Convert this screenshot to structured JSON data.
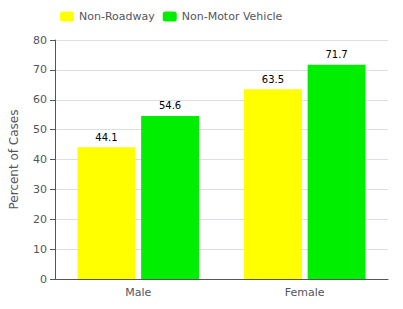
{
  "chart_data": {
    "type": "bar",
    "categories": [
      "Male",
      "Female"
    ],
    "series": [
      {
        "name": "Non-Roadway",
        "color": "#ffff00",
        "values": [
          44.1,
          63.5
        ]
      },
      {
        "name": "Non-Motor Vehicle",
        "color": "#00ee00",
        "values": [
          54.6,
          71.7
        ]
      }
    ],
    "ylabel": "Percent of Cases",
    "ylim": [
      0,
      80
    ],
    "yticks": [
      0,
      10,
      20,
      30,
      40,
      50,
      60,
      70,
      80
    ],
    "grid": true,
    "legend": "upper left",
    "data_labels": true
  }
}
